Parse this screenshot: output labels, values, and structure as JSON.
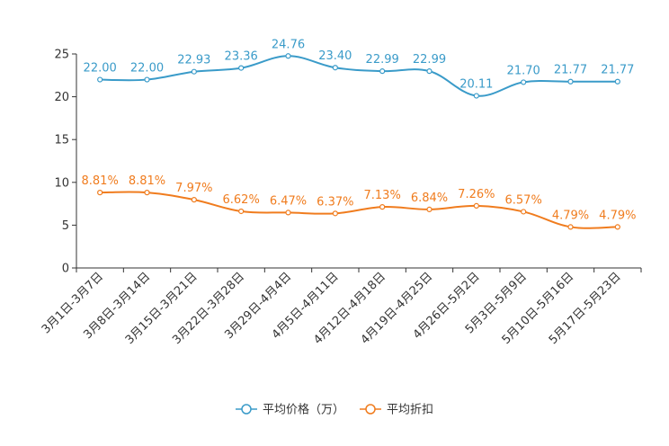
{
  "chart_data": {
    "type": "line",
    "title": "",
    "xlabel": "",
    "ylabel": "",
    "ylim": [
      0,
      25
    ],
    "yticks": [
      0,
      5,
      10,
      15,
      20,
      25
    ],
    "grid": false,
    "legend_position": "bottom-center",
    "categories": [
      "3月1日-3月7日",
      "3月8日-3月14日",
      "3月15日-3月21日",
      "3月22日-3月28日",
      "3月29日-4月4日",
      "4月5日-4月11日",
      "4月12日-4月18日",
      "4月19日-4月25日",
      "4月26日-5月2日",
      "5月3日-5月9日",
      "5月10日-5月16日",
      "5月17日-5月23日"
    ],
    "series": [
      {
        "name": "平均价格（万）",
        "color": "#3a9bc9",
        "values": [
          22.0,
          22.0,
          22.93,
          23.36,
          24.76,
          23.4,
          22.99,
          22.99,
          20.11,
          21.7,
          21.77,
          21.77
        ],
        "labels": [
          "22.00",
          "22.00",
          "22.93",
          "23.36",
          "24.76",
          "23.40",
          "22.99",
          "22.99",
          "20.11",
          "21.70",
          "21.77",
          "21.77"
        ]
      },
      {
        "name": "平均折扣",
        "color": "#f07c1e",
        "values": [
          8.81,
          8.81,
          7.97,
          6.62,
          6.47,
          6.37,
          7.13,
          6.84,
          7.26,
          6.57,
          4.79,
          4.79
        ],
        "labels": [
          "8.81%",
          "8.81%",
          "7.97%",
          "6.62%",
          "6.47%",
          "6.37%",
          "7.13%",
          "6.84%",
          "7.26%",
          "6.57%",
          "4.79%",
          "4.79%"
        ]
      }
    ]
  }
}
